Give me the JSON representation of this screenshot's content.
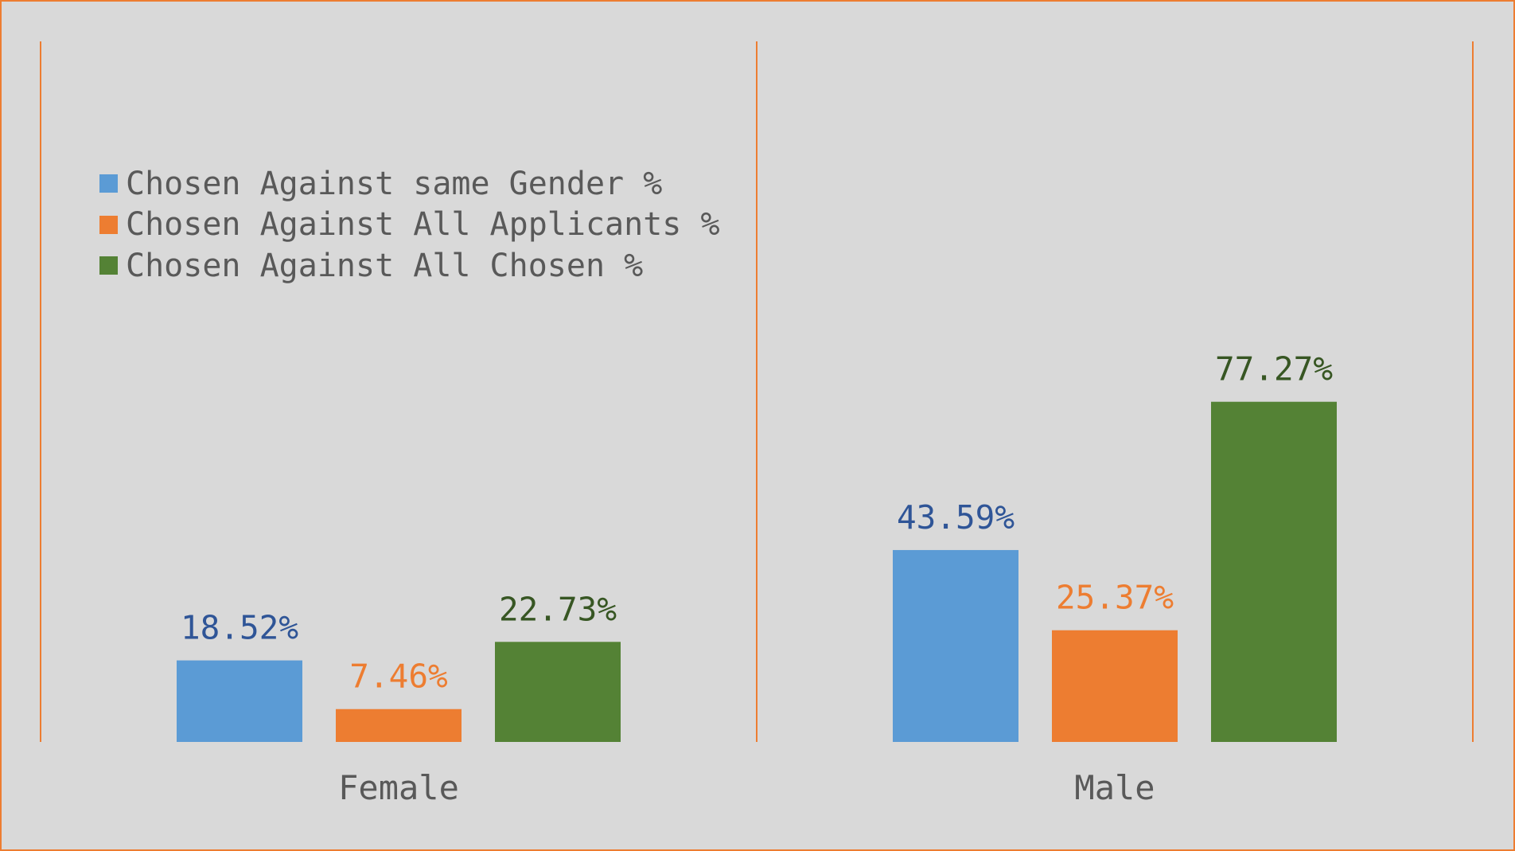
{
  "chart_data": {
    "type": "bar",
    "categories": [
      "Female",
      "Male"
    ],
    "series": [
      {
        "name": "Chosen Against same Gender %",
        "values": [
          18.52,
          43.59
        ],
        "labels": [
          "18.52%",
          "43.59%"
        ],
        "color": "#5b9bd5",
        "label_color": "#2f5597"
      },
      {
        "name": "Chosen Against All Applicants %",
        "values": [
          7.46,
          25.37
        ],
        "labels": [
          "7.46%",
          "25.37%"
        ],
        "color": "#ed7d31",
        "label_color": "#ed7d31"
      },
      {
        "name": "Chosen Against All Chosen %",
        "values": [
          22.73,
          77.27
        ],
        "labels": [
          "22.73%",
          "77.27%"
        ],
        "color": "#548235",
        "label_color": "#375623"
      }
    ],
    "ylim": [
      0,
      90
    ],
    "grid": false,
    "legend_position": "top-left",
    "axis_color": "#ed7d31",
    "background": "#d9d9d9"
  }
}
